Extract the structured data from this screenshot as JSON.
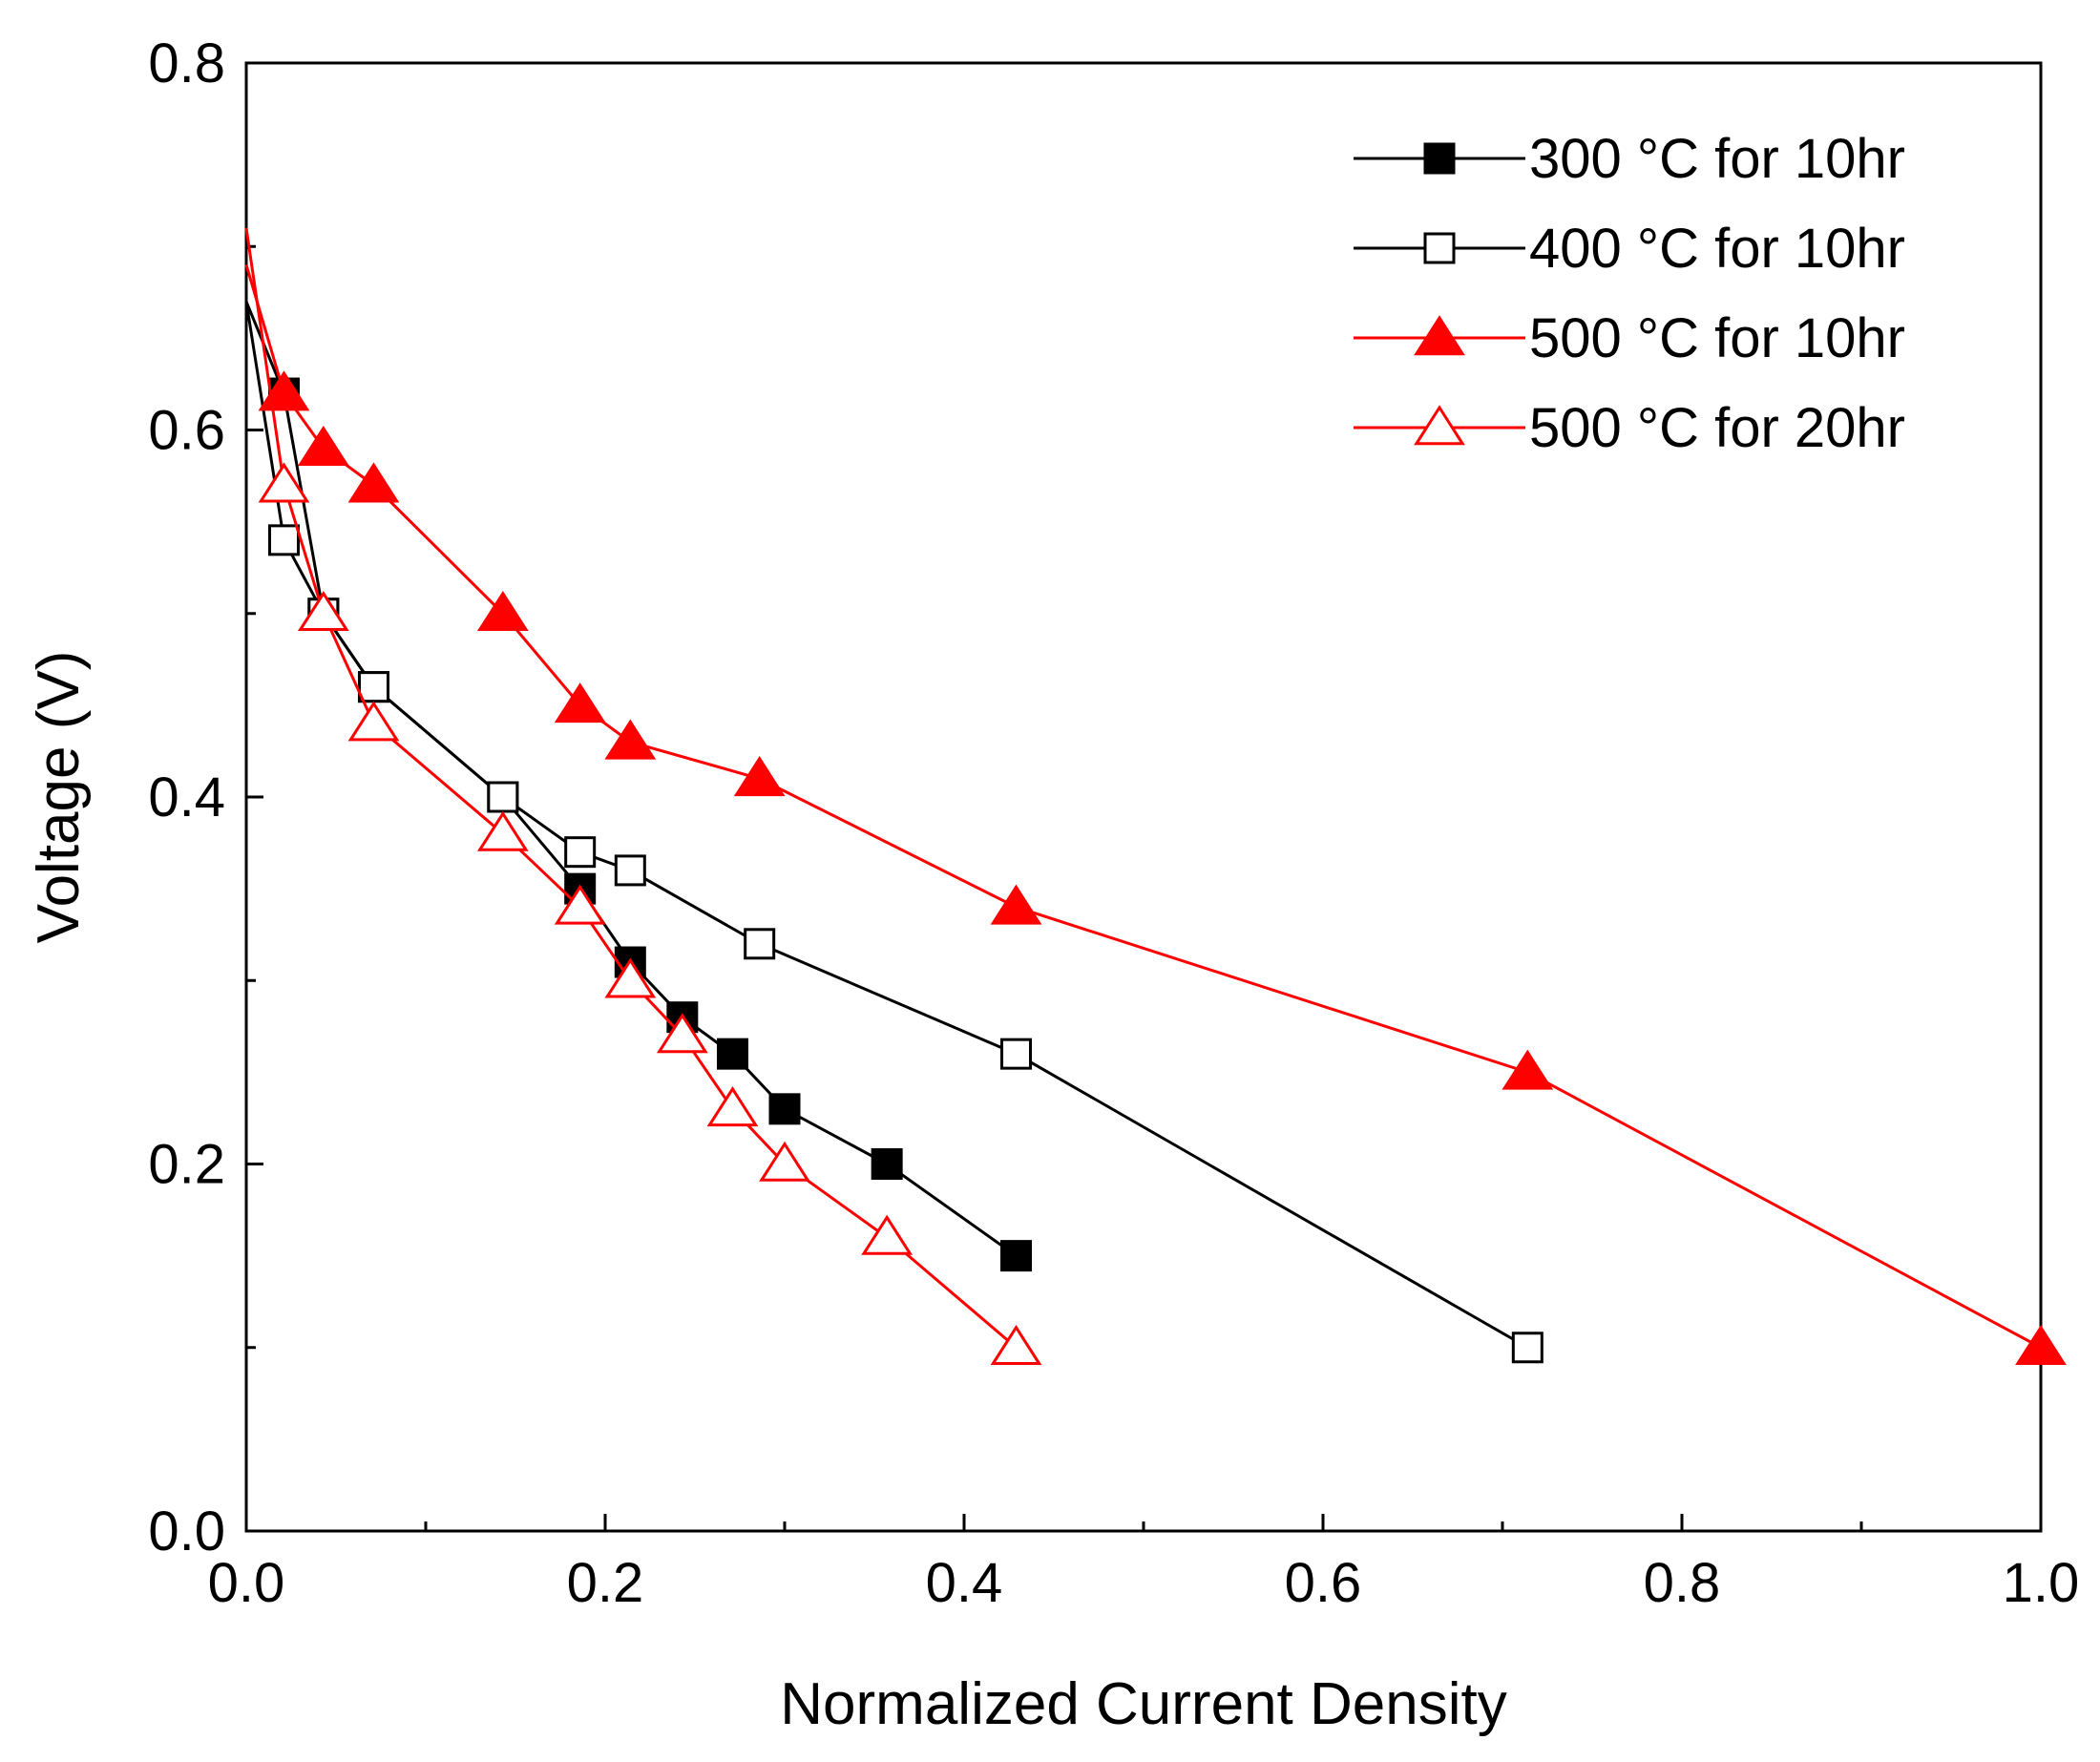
{
  "chart_data": {
    "type": "line",
    "title": "",
    "xlabel": "Normalized Current Density",
    "ylabel": "Voltage (V)",
    "xlim": [
      0.0,
      1.0
    ],
    "ylim": [
      0.0,
      0.8
    ],
    "x_ticks": [
      0.0,
      0.2,
      0.4,
      0.6,
      0.8,
      1.0
    ],
    "x_tick_labels": [
      "0.0",
      "0.2",
      "0.4",
      "0.6",
      "0.8",
      "1.0"
    ],
    "y_ticks": [
      0.0,
      0.2,
      0.4,
      0.6,
      0.8
    ],
    "y_tick_labels": [
      "0.0",
      "0.2",
      "0.4",
      "0.6",
      "0.8"
    ],
    "grid": false,
    "legend_position": "top-right",
    "series": [
      {
        "name": "300 °C for 10hr",
        "color": "#000000",
        "marker": "square-filled",
        "x": [
          0,
          0.021,
          0.043,
          0.071,
          0.143,
          0.186,
          0.214,
          0.243,
          0.271,
          0.3,
          0.357,
          0.429
        ],
        "y": [
          0.67,
          0.62,
          0.5,
          0.46,
          0.4,
          0.35,
          0.31,
          0.28,
          0.26,
          0.23,
          0.2,
          0.15
        ]
      },
      {
        "name": "400 °C for 10hr",
        "color": "#000000",
        "marker": "square-open",
        "x": [
          0,
          0.021,
          0.043,
          0.071,
          0.143,
          0.186,
          0.214,
          0.286,
          0.429,
          0.714
        ],
        "y": [
          0.67,
          0.54,
          0.5,
          0.46,
          0.4,
          0.37,
          0.36,
          0.32,
          0.26,
          0.1
        ]
      },
      {
        "name": "500 °C for 10hr",
        "color": "#ff0000",
        "marker": "triangle-filled",
        "x": [
          0,
          0.021,
          0.043,
          0.071,
          0.143,
          0.186,
          0.214,
          0.286,
          0.429,
          0.714,
          1.0
        ],
        "y": [
          0.69,
          0.62,
          0.59,
          0.57,
          0.5,
          0.45,
          0.43,
          0.41,
          0.34,
          0.25,
          0.1
        ]
      },
      {
        "name": "500 °C for 20hr",
        "color": "#ff0000",
        "marker": "triangle-open",
        "x": [
          0,
          0.021,
          0.043,
          0.071,
          0.143,
          0.186,
          0.214,
          0.243,
          0.271,
          0.3,
          0.357,
          0.429
        ],
        "y": [
          0.71,
          0.57,
          0.5,
          0.44,
          0.38,
          0.34,
          0.3,
          0.27,
          0.23,
          0.2,
          0.16,
          0.1
        ]
      }
    ]
  }
}
